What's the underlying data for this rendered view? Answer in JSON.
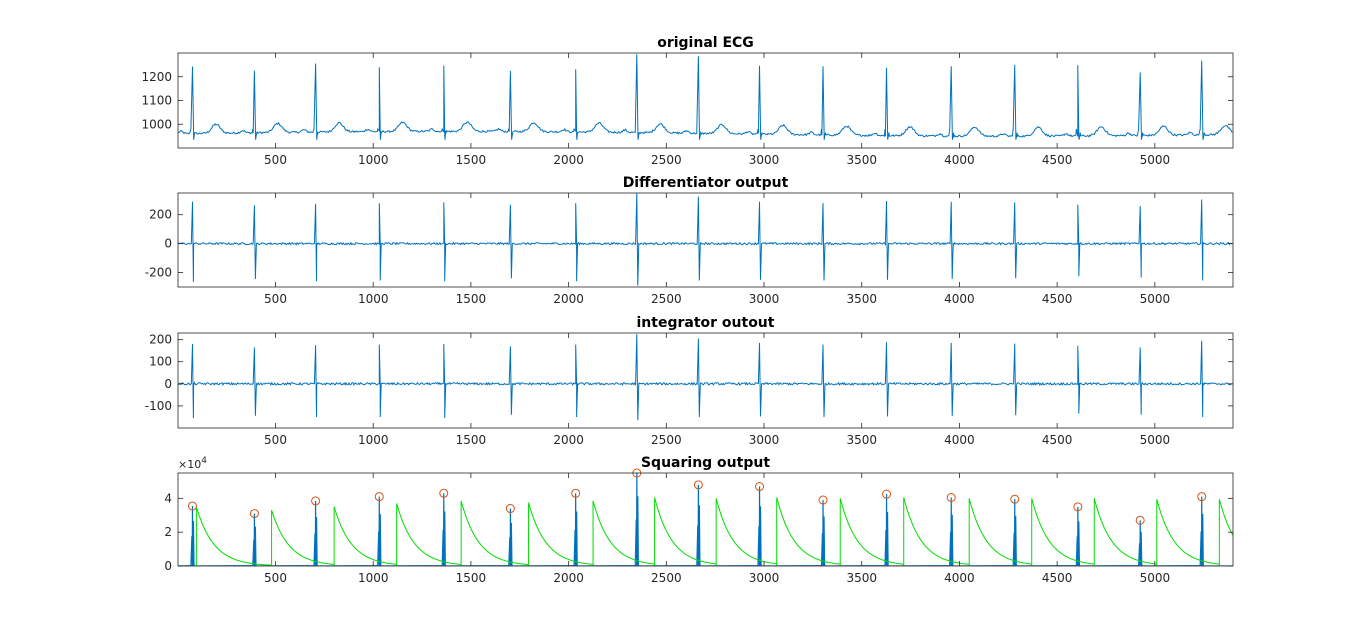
{
  "chart_data": [
    {
      "type": "line",
      "title": "original ECG",
      "xlim": [
        1,
        5400
      ],
      "ylim": [
        900,
        1300
      ],
      "xticks": [
        500,
        1000,
        1500,
        2000,
        2500,
        3000,
        3500,
        4000,
        4500,
        5000
      ],
      "yticks": [
        1000,
        1100,
        1200
      ],
      "ytick_labels": [
        "1000",
        "1100",
        "1200"
      ],
      "baseline": 960,
      "peaks": {
        "x": [
          75,
          392,
          705,
          1031,
          1361,
          1702,
          2036,
          2349,
          2664,
          2977,
          3302,
          3627,
          3958,
          4283,
          4606,
          4925,
          5240
        ],
        "y": [
          1243,
          1226,
          1256,
          1240,
          1247,
          1224,
          1232,
          1295,
          1286,
          1246,
          1244,
          1238,
          1244,
          1250,
          1248,
          1218,
          1268
        ]
      },
      "series": [
        {
          "color": "#0072BD"
        }
      ]
    },
    {
      "type": "line",
      "title": "Differentiator output",
      "xlim": [
        1,
        5400
      ],
      "ylim": [
        -300,
        350
      ],
      "xticks": [
        500,
        1000,
        1500,
        2000,
        2500,
        3000,
        3500,
        4000,
        4500,
        5000
      ],
      "yticks": [
        -200,
        0,
        200
      ],
      "ytick_labels": [
        "-200",
        "0",
        "200"
      ],
      "baseline": 0,
      "peaks": {
        "x": [
          75,
          392,
          705,
          1031,
          1361,
          1702,
          2036,
          2349,
          2664,
          2977,
          3302,
          3627,
          3958,
          4283,
          4606,
          4925,
          5240
        ],
        "y": [
          290,
          265,
          275,
          280,
          285,
          270,
          280,
          350,
          325,
          290,
          280,
          295,
          290,
          285,
          270,
          260,
          305
        ]
      },
      "troughs": [
        -265,
        -245,
        -260,
        -255,
        -260,
        -240,
        -260,
        -290,
        -255,
        -250,
        -255,
        -250,
        -245,
        -240,
        -225,
        -235,
        -255
      ],
      "series": [
        {
          "color": "#0072BD"
        }
      ]
    },
    {
      "type": "line",
      "title": "integrator outout",
      "xlim": [
        1,
        5400
      ],
      "ylim": [
        -200,
        230
      ],
      "xticks": [
        500,
        1000,
        1500,
        2000,
        2500,
        3000,
        3500,
        4000,
        4500,
        5000
      ],
      "yticks": [
        -100,
        0,
        100,
        200
      ],
      "ytick_labels": [
        "-100",
        "0",
        "100",
        "200"
      ],
      "baseline": 0,
      "peaks": {
        "x": [
          75,
          392,
          705,
          1031,
          1361,
          1702,
          2036,
          2349,
          2664,
          2977,
          3302,
          3627,
          3958,
          4283,
          4606,
          4925,
          5240
        ],
        "y": [
          180,
          165,
          175,
          178,
          180,
          170,
          178,
          225,
          205,
          185,
          178,
          188,
          185,
          182,
          172,
          165,
          195
        ]
      },
      "troughs": [
        -155,
        -145,
        -150,
        -150,
        -155,
        -140,
        -150,
        -165,
        -150,
        -148,
        -150,
        -148,
        -145,
        -142,
        -135,
        -140,
        -150
      ],
      "series": [
        {
          "color": "#0072BD"
        }
      ]
    },
    {
      "type": "line",
      "title": "Squaring output",
      "xlim": [
        1,
        5400
      ],
      "ylim": [
        0,
        55000
      ],
      "xticks": [
        500,
        1000,
        1500,
        2000,
        2500,
        3000,
        3500,
        4000,
        4500,
        5000
      ],
      "yticks": [
        0,
        20000,
        40000
      ],
      "ytick_labels": [
        "0",
        "2",
        "4"
      ],
      "y_exponent_base": "×10",
      "y_exponent_power": "4",
      "series": [
        {
          "color": "#0072BD",
          "peaks": {
            "x": [
              75,
              392,
              705,
              1031,
              1361,
              1702,
              2036,
              2349,
              2664,
              2977,
              3302,
              3627,
              3958,
              4283,
              4606,
              4925,
              5240
            ],
            "y": [
              35500,
              31000,
              38500,
              41000,
              43000,
              34000,
              43000,
              55000,
              48000,
              47000,
              39000,
              42500,
              40500,
              39500,
              35000,
              27000,
              41000
            ]
          }
        },
        {
          "color": "#00DD00",
          "start_x": [
            95,
            480,
            800,
            1120,
            1450,
            1795,
            2125,
            2440,
            2755,
            3065,
            3390,
            3715,
            4050,
            4370,
            4690,
            5010,
            5330
          ],
          "start_y": [
            35000,
            33000,
            35000,
            37000,
            38500,
            37500,
            38500,
            40500,
            40000,
            40500,
            40000,
            40500,
            40000,
            40000,
            40000,
            39500,
            39500
          ]
        },
        {
          "color": "#D95319",
          "marker": "circle",
          "x": [
            75,
            392,
            705,
            1031,
            1361,
            1702,
            2036,
            2349,
            2664,
            2977,
            3302,
            3627,
            3958,
            4283,
            4606,
            4925,
            5240
          ],
          "y": [
            35500,
            31000,
            38500,
            41000,
            43000,
            34000,
            43000,
            55000,
            48000,
            47000,
            39000,
            42500,
            40500,
            39500,
            35000,
            27000,
            41000
          ]
        }
      ]
    }
  ]
}
